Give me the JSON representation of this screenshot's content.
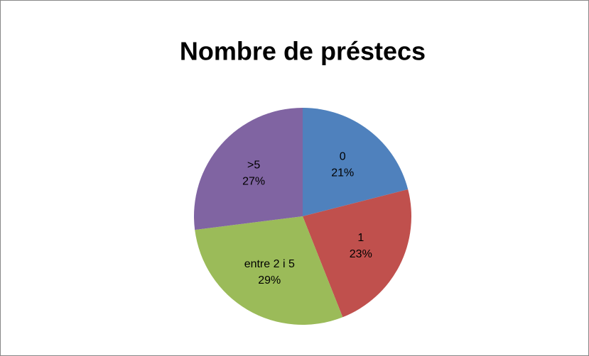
{
  "chart_data": {
    "type": "pie",
    "title": "Nombre de préstecs",
    "categories": [
      "0",
      "1",
      "entre 2 i 5",
      ">5"
    ],
    "values": [
      21,
      23,
      29,
      27
    ],
    "value_labels": [
      "21%",
      "23%",
      "29%",
      "27%"
    ],
    "colors": [
      "#4f81bd",
      "#c0504d",
      "#9bbb59",
      "#8064a2"
    ]
  }
}
